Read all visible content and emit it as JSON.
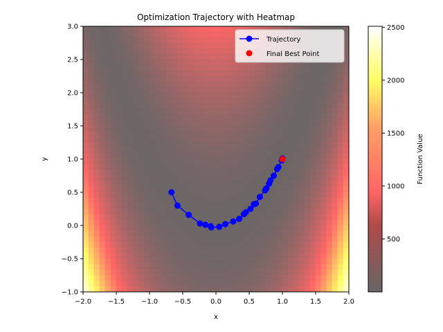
{
  "chart_data": {
    "type": "line",
    "title": "Optimization Trajectory with Heatmap",
    "xlabel": "x",
    "ylabel": "y",
    "xlim": [
      -2.0,
      2.0
    ],
    "ylim": [
      -1.0,
      3.0
    ],
    "x_ticks": [
      "−2.0",
      "−1.5",
      "−1.0",
      "−0.5",
      "0.0",
      "0.5",
      "1.0",
      "1.5",
      "2.0"
    ],
    "y_ticks": [
      "−1.0",
      "−0.5",
      "0.0",
      "0.5",
      "1.0",
      "1.5",
      "2.0",
      "2.5",
      "3.0"
    ],
    "grid": false,
    "legend_position": "top-right",
    "heatmap": {
      "function": "rosenbrock",
      "colormap": "hot",
      "alpha": 0.6,
      "colorbar_label": "Function Value",
      "colorbar_ticks": [
        {
          "value": 500,
          "label": "500"
        },
        {
          "value": 1000,
          "label": "1000"
        },
        {
          "value": 1500,
          "label": "1500"
        },
        {
          "value": 2000,
          "label": "2000"
        },
        {
          "value": 2500,
          "label": "2500"
        }
      ],
      "vmin": 0,
      "vmax": 2509
    },
    "series": [
      {
        "name": "Trajectory",
        "color": "#0000ff",
        "marker": "circle",
        "x": [
          -0.67,
          -0.58,
          -0.41,
          -0.24,
          -0.16,
          -0.08,
          -0.07,
          0.05,
          0.14,
          0.26,
          0.35,
          0.42,
          0.45,
          0.52,
          0.57,
          0.6,
          0.66,
          0.74,
          0.76,
          0.8,
          0.82,
          0.87,
          0.92,
          0.94,
          0.99,
          1.0
        ],
        "y": [
          0.5,
          0.3,
          0.16,
          0.03,
          0.01,
          -0.01,
          -0.03,
          -0.02,
          0.02,
          0.06,
          0.1,
          0.17,
          0.2,
          0.25,
          0.32,
          0.33,
          0.43,
          0.53,
          0.56,
          0.63,
          0.68,
          0.75,
          0.85,
          0.88,
          0.98,
          1.01
        ]
      },
      {
        "name": "Final Best Point",
        "color": "#ff0000",
        "marker": "circle",
        "x": [
          1.0
        ],
        "y": [
          1.0
        ]
      }
    ]
  }
}
